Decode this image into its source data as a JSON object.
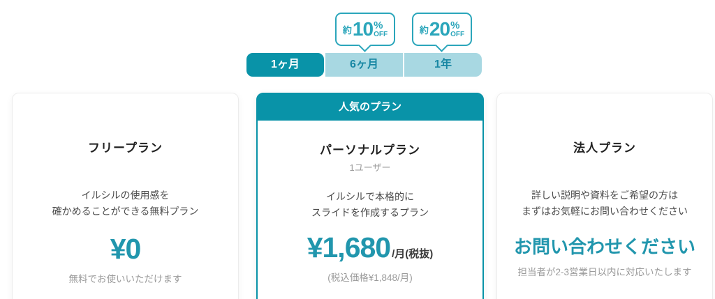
{
  "colors": {
    "teal_dark": "#0993a8",
    "teal_badge": "#2ba6bb",
    "tab_light_bg": "#a8d8e2",
    "tab_light_text": "#1887a3",
    "price_teal": "#2196ad",
    "note_gray": "#9b9b9b"
  },
  "period_selector": {
    "tabs": [
      {
        "label": "1ヶ月",
        "selected": true
      },
      {
        "label": "6ヶ月",
        "selected": false
      },
      {
        "label": "1年",
        "selected": false
      }
    ],
    "badges": [
      {
        "prefix": "約",
        "number": "10",
        "percent": "%",
        "off": "OFF"
      },
      {
        "prefix": "約",
        "number": "20",
        "percent": "%",
        "off": "OFF"
      }
    ]
  },
  "plans": {
    "free": {
      "name": "フリープラン",
      "desc1": "イルシルの使用感を",
      "desc2": "確かめることができる無料プラン",
      "price": "¥0",
      "note": "無料でお使いいただけます"
    },
    "personal": {
      "ribbon": "人気のプラン",
      "name": "パーソナルプラン",
      "subtitle": "1ユーザー",
      "desc1": "イルシルで本格的に",
      "desc2": "スライドを作成するプラン",
      "price": "¥1,680",
      "price_suffix": "/月(税抜)",
      "note": "(税込価格¥1,848/月)"
    },
    "corporate": {
      "name": "法人プラン",
      "desc1": "詳しい説明や資料をご希望の方は",
      "desc2": "まずはお気軽にお問い合わせください",
      "cta": "お問い合わせください",
      "note": "担当者が2-3営業日以内に対応いたします"
    }
  }
}
